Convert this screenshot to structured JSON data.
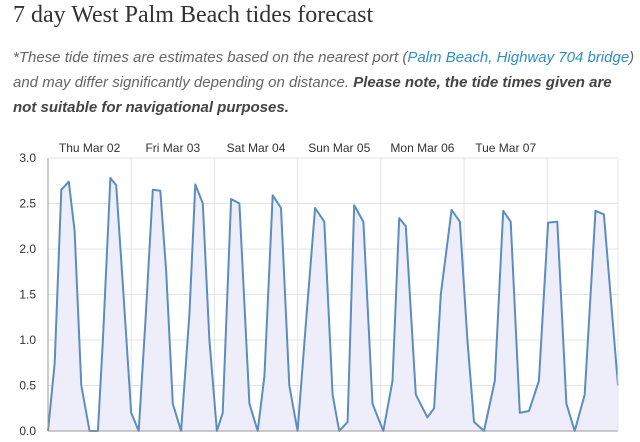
{
  "page": {
    "title": "7 day West Palm Beach tides forecast",
    "note_prefix": "*These tide times are estimates based on the nearest port (",
    "port_link": "Palm Beach, Highway 704 bridge",
    "note_middle": ") and may differ significantly depending on distance. ",
    "note_bold": "Please note, the tide times given are not suitable for navigational purposes."
  },
  "chart_data": {
    "type": "area",
    "title": "",
    "xlabel": "",
    "ylabel": "",
    "x_unit": "day",
    "xlim": [
      0,
      6.85
    ],
    "ylim": [
      0,
      3.0
    ],
    "yticks": [
      "3.0",
      "2.5",
      "2.0",
      "1.5",
      "1.0",
      "0.5",
      "0.0"
    ],
    "ytick_values": [
      3.0,
      2.5,
      2.0,
      1.5,
      1.0,
      0.5,
      0.0
    ],
    "day_labels": [
      "Thu Mar 02",
      "Fri Mar 03",
      "Sat Mar 04",
      "Sun Mar 05",
      "Mon Mar 06",
      "Tue Mar 07"
    ],
    "grid": true,
    "colors": {
      "line": "#5b8dbf",
      "fill": "#eeeefb",
      "grid": "#e4e4e4",
      "axis": "#999999"
    },
    "series": [
      {
        "x": [
          0.0,
          0.08,
          0.16,
          0.25,
          0.32,
          0.4,
          0.5,
          0.6,
          0.66,
          0.75,
          0.82,
          0.9,
          1.0,
          1.09,
          1.17,
          1.26,
          1.35,
          1.42,
          1.5,
          1.6,
          1.7,
          1.77,
          1.86,
          1.94,
          2.03,
          2.1,
          2.2,
          2.3,
          2.42,
          2.52,
          2.6,
          2.7,
          2.8,
          2.9,
          3.0,
          3.1,
          3.21,
          3.32,
          3.42,
          3.5,
          3.6,
          3.68,
          3.79,
          3.9,
          4.03,
          4.14,
          4.22,
          4.3,
          4.42,
          4.56,
          4.64,
          4.72,
          4.85,
          4.95,
          5.04,
          5.12,
          5.24,
          5.37,
          5.47,
          5.56,
          5.67,
          5.78,
          5.9,
          6.01,
          6.12,
          6.23,
          6.33,
          6.45,
          6.58,
          6.68,
          6.85
        ],
        "y": [
          0.0,
          0.75,
          2.65,
          2.74,
          2.2,
          0.5,
          0.0,
          0.0,
          1.0,
          2.78,
          2.7,
          1.6,
          0.2,
          0.0,
          1.2,
          2.65,
          2.64,
          1.75,
          0.3,
          0.0,
          1.3,
          2.71,
          2.5,
          1.0,
          0.0,
          0.2,
          2.55,
          2.5,
          0.3,
          0.0,
          0.6,
          2.59,
          2.45,
          0.5,
          0.0,
          1.2,
          2.45,
          2.3,
          0.4,
          0.0,
          0.1,
          2.48,
          2.3,
          0.3,
          0.0,
          0.55,
          2.34,
          2.25,
          0.4,
          0.15,
          0.25,
          1.5,
          2.43,
          2.3,
          1.0,
          0.1,
          0.0,
          0.55,
          2.42,
          2.3,
          0.2,
          0.22,
          0.55,
          2.29,
          2.3,
          0.3,
          0.0,
          0.4,
          2.42,
          2.38,
          0.5
        ]
      }
    ]
  }
}
